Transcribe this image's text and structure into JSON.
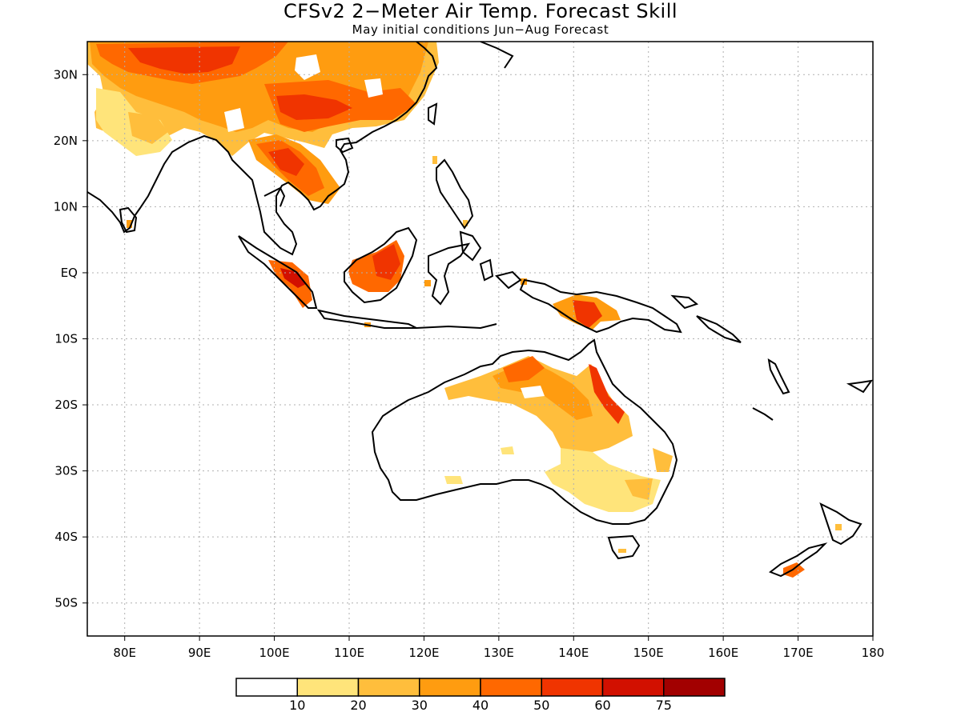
{
  "title": "CFSv2 2−Meter Air Temp. Forecast Skill",
  "subtitle": "May initial conditions  Jun−Aug Forecast",
  "map": {
    "lon_range": [
      75,
      180
    ],
    "lat_range": [
      -55,
      35
    ],
    "lat_ticks": [
      {
        "value": 30,
        "label": "30N"
      },
      {
        "value": 20,
        "label": "20N"
      },
      {
        "value": 10,
        "label": "10N"
      },
      {
        "value": 0,
        "label": "EQ"
      },
      {
        "value": -10,
        "label": "10S"
      },
      {
        "value": -20,
        "label": "20S"
      },
      {
        "value": -30,
        "label": "30S"
      },
      {
        "value": -40,
        "label": "40S"
      },
      {
        "value": -50,
        "label": "50S"
      }
    ],
    "lon_ticks": [
      {
        "value": 80,
        "label": "80E"
      },
      {
        "value": 90,
        "label": "90E"
      },
      {
        "value": 100,
        "label": "100E"
      },
      {
        "value": 110,
        "label": "110E"
      },
      {
        "value": 120,
        "label": "120E"
      },
      {
        "value": 130,
        "label": "130E"
      },
      {
        "value": 140,
        "label": "140E"
      },
      {
        "value": 150,
        "label": "150E"
      },
      {
        "value": 160,
        "label": "160E"
      },
      {
        "value": 170,
        "label": "170E"
      },
      {
        "value": 180,
        "label": "180"
      }
    ],
    "grid": true
  },
  "colorbar": {
    "colors": [
      "#ffffff",
      "#ffe47a",
      "#ffbe3c",
      "#ff9c10",
      "#ff6800",
      "#f03400",
      "#d21000",
      "#a20000"
    ],
    "labels": [
      "10",
      "20",
      "30",
      "40",
      "50",
      "60",
      "75"
    ]
  }
}
